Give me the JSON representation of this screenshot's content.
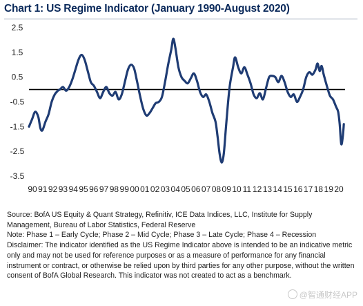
{
  "page": {
    "title": "Chart 1: US Regime Indicator (January 1990-August 2020)",
    "notes": {
      "source": "Source: BofA US Equity & Quant Strategy, Refinitiv, ICE Data Indices, LLC, Institute for Supply Management, Bureau of Labor Statistics, Federal Reserve",
      "note": "Note: Phase 1 – Early Cycle; Phase 2 – Mid Cycle; Phase 3 – Late Cycle; Phase 4 – Recession",
      "disclaimer": "Disclaimer: The indicator identified as the US Regime Indicator above is intended to be an indicative metric only and may not be used for reference purposes or as a measure of performance for any financial instrument or contract, or otherwise be relied upon by third parties for any other purpose, without the written consent of BofA Global Research. This indicator was not created to act as a benchmark."
    },
    "watermark": "@智通财经APP"
  },
  "colors": {
    "line": "#1f3c74",
    "zero_line": "#000000",
    "title": "#0b2a5b"
  },
  "chart_data": {
    "type": "line",
    "title": "Chart 1: US Regime Indicator (January 1990-August 2020)",
    "xlabel": "",
    "ylabel": "",
    "xlim": [
      1990.0,
      2020.67
    ],
    "ylim": [
      -3.5,
      2.5
    ],
    "yticks": [
      2.5,
      1.5,
      0.5,
      -0.5,
      -1.5,
      -2.5,
      -3.5
    ],
    "ytick_labels": [
      "2.5",
      "1.5",
      "0.5",
      "-0.5",
      "-1.5",
      "-2.5",
      "-3.5"
    ],
    "xticks": [
      1990,
      1991,
      1992,
      1993,
      1994,
      1995,
      1996,
      1997,
      1998,
      1999,
      2000,
      2001,
      2002,
      2003,
      2004,
      2005,
      2006,
      2007,
      2008,
      2009,
      2010,
      2011,
      2012,
      2013,
      2014,
      2015,
      2016,
      2017,
      2018,
      2019,
      2020
    ],
    "xtick_labels": [
      "90",
      "91",
      "92",
      "93",
      "94",
      "95",
      "96",
      "97",
      "98",
      "99",
      "00",
      "01",
      "02",
      "03",
      "04",
      "05",
      "06",
      "07",
      "08",
      "09",
      "10",
      "11",
      "12",
      "13",
      "14",
      "15",
      "16",
      "17",
      "18",
      "19",
      "20"
    ],
    "reference_line": 0,
    "grid": false,
    "legend": "none",
    "series": [
      {
        "points": [
          [
            1990.0,
            -1.5
          ],
          [
            1990.3,
            -1.2
          ],
          [
            1990.6,
            -0.9
          ],
          [
            1990.9,
            -1.1
          ],
          [
            1991.1,
            -1.55
          ],
          [
            1991.3,
            -1.65
          ],
          [
            1991.6,
            -1.3
          ],
          [
            1991.9,
            -1.0
          ],
          [
            1992.2,
            -0.5
          ],
          [
            1992.5,
            -0.2
          ],
          [
            1992.8,
            -0.05
          ],
          [
            1993.0,
            0.0
          ],
          [
            1993.3,
            0.1
          ],
          [
            1993.6,
            -0.05
          ],
          [
            1993.9,
            0.1
          ],
          [
            1994.2,
            0.4
          ],
          [
            1994.5,
            0.8
          ],
          [
            1994.8,
            1.2
          ],
          [
            1995.1,
            1.4
          ],
          [
            1995.4,
            1.2
          ],
          [
            1995.7,
            0.75
          ],
          [
            1996.0,
            0.3
          ],
          [
            1996.3,
            0.15
          ],
          [
            1996.6,
            -0.1
          ],
          [
            1996.9,
            -0.35
          ],
          [
            1997.2,
            -0.1
          ],
          [
            1997.5,
            0.1
          ],
          [
            1997.8,
            -0.15
          ],
          [
            1998.1,
            -0.25
          ],
          [
            1998.4,
            -0.1
          ],
          [
            1998.7,
            -0.4
          ],
          [
            1999.0,
            -0.2
          ],
          [
            1999.3,
            0.3
          ],
          [
            1999.6,
            0.8
          ],
          [
            1999.9,
            1.0
          ],
          [
            2000.2,
            0.85
          ],
          [
            2000.5,
            0.3
          ],
          [
            2000.8,
            -0.3
          ],
          [
            2001.1,
            -0.8
          ],
          [
            2001.4,
            -1.05
          ],
          [
            2001.7,
            -0.95
          ],
          [
            2002.0,
            -0.75
          ],
          [
            2002.3,
            -0.55
          ],
          [
            2002.6,
            -0.5
          ],
          [
            2002.9,
            -0.3
          ],
          [
            2003.2,
            0.3
          ],
          [
            2003.5,
            1.0
          ],
          [
            2003.8,
            1.6
          ],
          [
            2004.0,
            2.05
          ],
          [
            2004.2,
            1.7
          ],
          [
            2004.5,
            0.9
          ],
          [
            2004.8,
            0.5
          ],
          [
            2005.1,
            0.35
          ],
          [
            2005.4,
            0.25
          ],
          [
            2005.7,
            0.45
          ],
          [
            2006.0,
            0.65
          ],
          [
            2006.3,
            0.35
          ],
          [
            2006.6,
            -0.1
          ],
          [
            2006.9,
            -0.3
          ],
          [
            2007.2,
            -0.2
          ],
          [
            2007.5,
            -0.5
          ],
          [
            2007.8,
            -0.95
          ],
          [
            2008.1,
            -1.3
          ],
          [
            2008.3,
            -1.9
          ],
          [
            2008.5,
            -2.6
          ],
          [
            2008.7,
            -2.95
          ],
          [
            2008.9,
            -2.6
          ],
          [
            2009.1,
            -1.6
          ],
          [
            2009.3,
            -0.6
          ],
          [
            2009.5,
            0.2
          ],
          [
            2009.8,
            0.9
          ],
          [
            2010.0,
            1.3
          ],
          [
            2010.3,
            0.9
          ],
          [
            2010.6,
            0.65
          ],
          [
            2010.9,
            0.9
          ],
          [
            2011.2,
            0.6
          ],
          [
            2011.5,
            0.25
          ],
          [
            2011.8,
            -0.2
          ],
          [
            2012.1,
            -0.35
          ],
          [
            2012.4,
            -0.15
          ],
          [
            2012.7,
            -0.4
          ],
          [
            2013.0,
            0.05
          ],
          [
            2013.3,
            0.5
          ],
          [
            2013.6,
            0.55
          ],
          [
            2013.9,
            0.5
          ],
          [
            2014.2,
            0.3
          ],
          [
            2014.5,
            0.55
          ],
          [
            2014.8,
            0.3
          ],
          [
            2015.1,
            -0.1
          ],
          [
            2015.4,
            -0.3
          ],
          [
            2015.7,
            -0.2
          ],
          [
            2016.0,
            -0.5
          ],
          [
            2016.3,
            -0.3
          ],
          [
            2016.6,
            0.0
          ],
          [
            2016.9,
            0.5
          ],
          [
            2017.2,
            0.7
          ],
          [
            2017.5,
            0.6
          ],
          [
            2017.8,
            0.8
          ],
          [
            2018.0,
            1.05
          ],
          [
            2018.2,
            0.75
          ],
          [
            2018.4,
            0.95
          ],
          [
            2018.6,
            0.6
          ],
          [
            2018.9,
            0.15
          ],
          [
            2019.2,
            -0.25
          ],
          [
            2019.5,
            -0.4
          ],
          [
            2019.8,
            -0.7
          ],
          [
            2020.0,
            -0.9
          ],
          [
            2020.15,
            -1.4
          ],
          [
            2020.3,
            -2.2
          ],
          [
            2020.45,
            -1.9
          ],
          [
            2020.55,
            -1.4
          ]
        ]
      }
    ]
  }
}
